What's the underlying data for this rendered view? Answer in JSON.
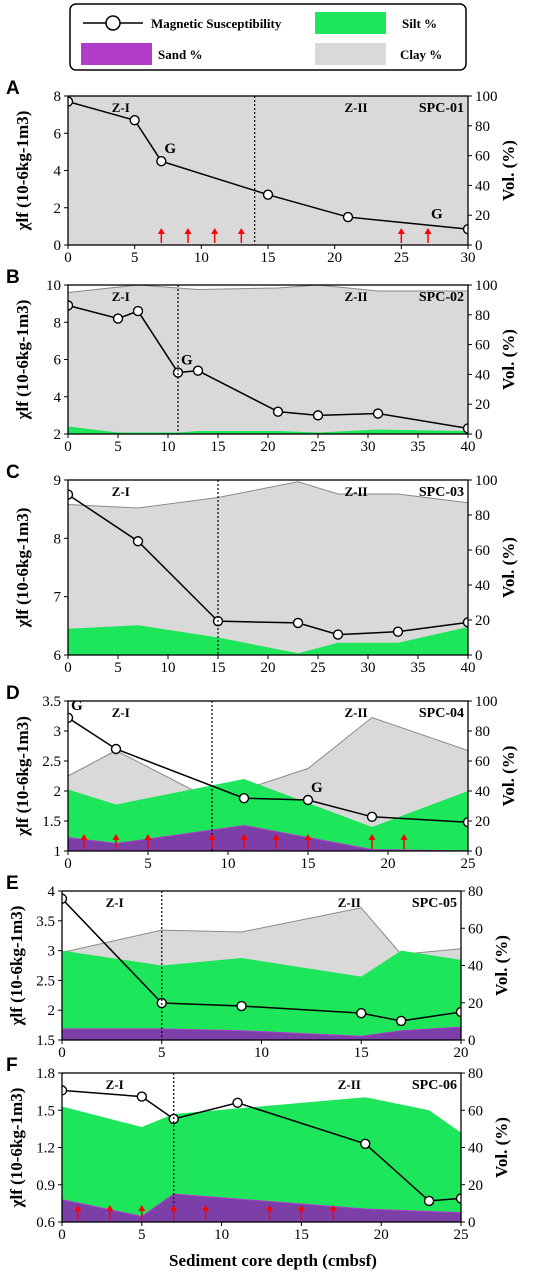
{
  "legend": {
    "magnetic": "Magnetic Susceptibility",
    "silt": "Silt %",
    "sand": "Sand %",
    "clay": "Clay %"
  },
  "colors": {
    "clay": "#d9d9d9",
    "silt": "#1ee65a",
    "sand": "#b03cc8",
    "sand_overlap": "#7c3fa8",
    "arrow": "#ff0000",
    "line": "#000000"
  },
  "xlabel": "Sediment core depth (cmbsf)",
  "chart_data": [
    {
      "type": "area",
      "panel": "A",
      "core": "SPC-01",
      "x_ticks": [
        0,
        5,
        10,
        15,
        20,
        25,
        30
      ],
      "xlim": [
        0,
        30
      ],
      "y_left_ticks": [
        0,
        2,
        4,
        6,
        8
      ],
      "ylim_left": [
        0,
        8
      ],
      "y_right_ticks": [
        0,
        20,
        40,
        60,
        80,
        100
      ],
      "ylim_right": [
        0,
        100
      ],
      "ylabel_left": "χlf (10-6kg-1m3)",
      "ylabel_right": "Vol. (%)",
      "zone_boundary": 14,
      "zones": [
        "Z-I",
        "Z-II"
      ],
      "ms": [
        [
          0,
          7.7
        ],
        [
          5,
          6.7
        ],
        [
          7,
          4.5
        ],
        [
          15,
          2.7
        ],
        [
          21,
          1.5
        ],
        [
          30,
          0.85
        ]
      ],
      "clay_top": [
        [
          0,
          100
        ],
        [
          30,
          100
        ]
      ],
      "silt_top": [],
      "sand_top": [],
      "g_labels": [
        [
          7,
          4.5
        ],
        [
          27,
          1.0
        ]
      ],
      "arrows": [
        7,
        9,
        11,
        13,
        25,
        27
      ]
    },
    {
      "type": "area",
      "panel": "B",
      "core": "SPC-02",
      "x_ticks": [
        0,
        5,
        10,
        15,
        20,
        25,
        30,
        35,
        40
      ],
      "xlim": [
        0,
        40
      ],
      "y_left_ticks": [
        2,
        4,
        6,
        8,
        10
      ],
      "ylim_left": [
        2,
        10
      ],
      "y_right_ticks": [
        0,
        20,
        40,
        60,
        80,
        100
      ],
      "ylim_right": [
        0,
        100
      ],
      "ylabel_left": "χlf (10-6kg-1m3)",
      "ylabel_right": "Vol. (%)",
      "zone_boundary": 11,
      "zones": [
        "Z-I",
        "Z-II"
      ],
      "ms": [
        [
          0,
          8.9
        ],
        [
          5,
          8.2
        ],
        [
          7,
          8.6
        ],
        [
          11,
          5.3
        ],
        [
          13,
          5.4
        ],
        [
          21,
          3.2
        ],
        [
          25,
          3.0
        ],
        [
          31,
          3.1
        ],
        [
          40,
          2.3
        ]
      ],
      "clay_top": [
        [
          0,
          95
        ],
        [
          7,
          100
        ],
        [
          13,
          97
        ],
        [
          21,
          98
        ],
        [
          25,
          100
        ],
        [
          31,
          96
        ],
        [
          40,
          96
        ]
      ],
      "silt_top": [
        [
          0,
          5
        ],
        [
          5,
          1
        ],
        [
          11,
          1
        ],
        [
          13,
          2
        ],
        [
          21,
          2
        ],
        [
          25,
          1
        ],
        [
          31,
          3
        ],
        [
          40,
          2
        ]
      ],
      "sand_top": [],
      "g_labels": [
        [
          11,
          5.3
        ]
      ],
      "arrows": []
    },
    {
      "type": "area",
      "panel": "C",
      "core": "SPC-03",
      "x_ticks": [
        0,
        5,
        10,
        15,
        20,
        25,
        30,
        35,
        40
      ],
      "xlim": [
        0,
        40
      ],
      "y_left_ticks": [
        6,
        7,
        8,
        9
      ],
      "ylim_left": [
        6,
        9
      ],
      "y_right_ticks": [
        0,
        20,
        40,
        60,
        80,
        100
      ],
      "ylim_right": [
        0,
        100
      ],
      "ylabel_left": "χlf (10-6kg-1m3)",
      "ylabel_right": "Vol. (%)",
      "zone_boundary": 15,
      "zones": [
        "Z-I",
        "Z-II"
      ],
      "ms": [
        [
          0,
          8.75
        ],
        [
          7,
          7.95
        ],
        [
          15,
          6.58
        ],
        [
          23,
          6.55
        ],
        [
          27,
          6.35
        ],
        [
          33,
          6.4
        ],
        [
          40,
          6.56
        ]
      ],
      "clay_top": [
        [
          0,
          86
        ],
        [
          7,
          84
        ],
        [
          15,
          90
        ],
        [
          23,
          99
        ],
        [
          27,
          92
        ],
        [
          33,
          92
        ],
        [
          40,
          87
        ]
      ],
      "silt_top": [
        [
          0,
          15
        ],
        [
          7,
          17
        ],
        [
          15,
          10
        ],
        [
          23,
          1
        ],
        [
          27,
          7
        ],
        [
          33,
          7
        ],
        [
          40,
          16
        ]
      ],
      "sand_top": [],
      "g_labels": [],
      "arrows": []
    },
    {
      "type": "area",
      "panel": "D",
      "core": "SPC-04",
      "x_ticks": [
        0,
        5,
        10,
        15,
        20,
        25
      ],
      "xlim": [
        0,
        25
      ],
      "y_left_ticks": [
        1,
        1.5,
        2,
        2.5,
        3,
        3.5
      ],
      "ylim_left": [
        1,
        3.5
      ],
      "y_right_ticks": [
        0,
        20,
        40,
        60,
        80,
        100
      ],
      "ylim_right": [
        0,
        100
      ],
      "ylabel_left": "χlf (10-6kg-1m3)",
      "ylabel_right": "Vol. (%)",
      "zone_boundary": 9,
      "zones": [
        "Z-I",
        "Z-II"
      ],
      "ms": [
        [
          0,
          3.22
        ],
        [
          3,
          2.7
        ],
        [
          11,
          1.88
        ],
        [
          15,
          1.85
        ],
        [
          19,
          1.57
        ],
        [
          25,
          1.48
        ]
      ],
      "clay_top": [
        [
          0,
          50
        ],
        [
          3,
          67
        ],
        [
          9,
          34
        ],
        [
          15,
          55
        ],
        [
          19,
          89
        ],
        [
          25,
          67
        ]
      ],
      "silt_top": [
        [
          0,
          41
        ],
        [
          3,
          31
        ],
        [
          11,
          48
        ],
        [
          19,
          16
        ],
        [
          25,
          40
        ]
      ],
      "sand_top": [
        [
          0,
          9
        ],
        [
          3,
          5
        ],
        [
          11,
          17
        ],
        [
          19,
          1
        ],
        [
          25,
          0
        ]
      ],
      "g_labels": [
        [
          0,
          3.22
        ],
        [
          15,
          1.85
        ]
      ],
      "arrows": [
        1,
        3,
        5,
        9,
        11,
        13,
        15,
        19,
        21
      ]
    },
    {
      "type": "area",
      "panel": "E",
      "core": "SPC-05",
      "x_ticks": [
        0,
        5,
        10,
        15,
        20
      ],
      "xlim": [
        0,
        20
      ],
      "y_left_ticks": [
        1.5,
        2,
        2.5,
        3,
        3.5,
        4
      ],
      "ylim_left": [
        1.5,
        4
      ],
      "y_right_ticks": [
        0,
        20,
        40,
        60,
        80
      ],
      "ylim_right": [
        0,
        80
      ],
      "ylabel_left": "χlf (10-6kg-1m3)",
      "ylabel_right": "Vol. (%)",
      "zone_boundary": 5,
      "zones": [
        "Z-I",
        "Z-II"
      ],
      "ms": [
        [
          0,
          3.87
        ],
        [
          5,
          2.12
        ],
        [
          9,
          2.07
        ],
        [
          15,
          1.95
        ],
        [
          17,
          1.82
        ],
        [
          20,
          1.97
        ]
      ],
      "clay_top": [
        [
          0,
          47
        ],
        [
          5,
          59
        ],
        [
          9,
          58
        ],
        [
          15,
          71
        ],
        [
          17,
          46
        ],
        [
          20,
          49
        ]
      ],
      "silt_top": [
        [
          0,
          48
        ],
        [
          5,
          40
        ],
        [
          9,
          44
        ],
        [
          15,
          34
        ],
        [
          17,
          48
        ],
        [
          20,
          43
        ]
      ],
      "sand_top": [
        [
          0,
          6
        ],
        [
          5,
          6
        ],
        [
          9,
          5
        ],
        [
          15,
          2
        ],
        [
          17,
          5
        ],
        [
          20,
          7
        ]
      ],
      "g_labels": [],
      "arrows": []
    },
    {
      "type": "area",
      "panel": "F",
      "core": "SPC-06",
      "x_ticks": [
        0,
        5,
        10,
        15,
        20,
        25
      ],
      "xlim": [
        0,
        25
      ],
      "y_left_ticks": [
        0.6,
        0.9,
        1.2,
        1.5,
        1.8
      ],
      "ylim_left": [
        0.6,
        1.8
      ],
      "y_right_ticks": [
        0,
        20,
        40,
        60,
        80
      ],
      "ylim_right": [
        0,
        80
      ],
      "ylabel_left": "χlf (10-6kg-1m3)",
      "ylabel_right": "Vol. (%)",
      "zone_boundary": 7,
      "zones": [
        "Z-I",
        "Z-II"
      ],
      "ms": [
        [
          0,
          1.66
        ],
        [
          5,
          1.61
        ],
        [
          7,
          1.43
        ],
        [
          11,
          1.56
        ],
        [
          19,
          1.23
        ],
        [
          23,
          0.77
        ],
        [
          25,
          0.79
        ]
      ],
      "clay_top": [
        [
          0,
          20
        ],
        [
          5,
          37
        ],
        [
          7,
          25
        ],
        [
          19,
          25
        ],
        [
          23,
          32
        ],
        [
          25,
          44
        ]
      ],
      "silt_top": [
        [
          0,
          62
        ],
        [
          5,
          51
        ],
        [
          7,
          58
        ],
        [
          19,
          67
        ],
        [
          23,
          60
        ],
        [
          25,
          48
        ]
      ],
      "sand_top": [
        [
          0,
          12
        ],
        [
          5,
          3
        ],
        [
          7,
          15
        ],
        [
          19,
          7
        ],
        [
          25,
          5
        ]
      ],
      "g_labels": [],
      "arrows": [
        1,
        3,
        5,
        7,
        9,
        13,
        15,
        17
      ]
    }
  ]
}
